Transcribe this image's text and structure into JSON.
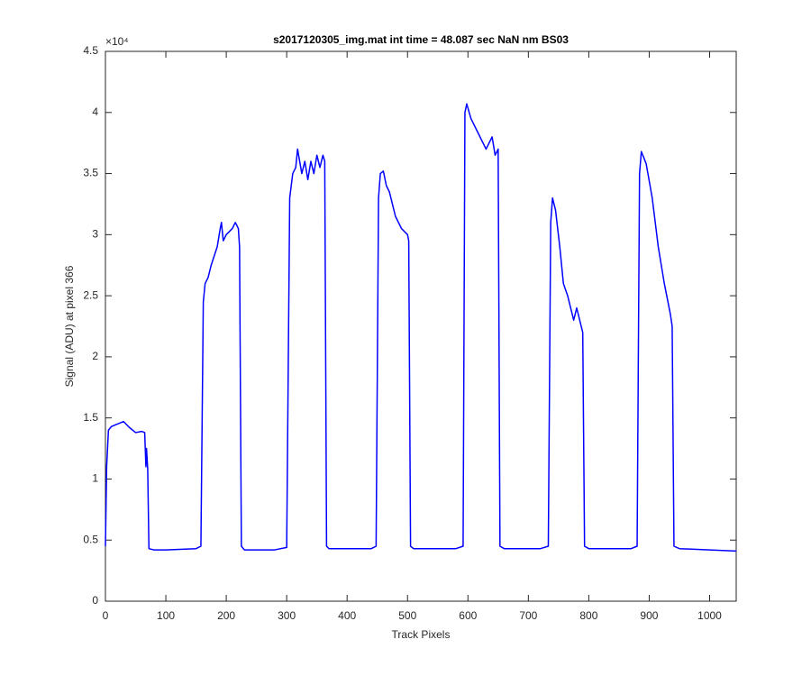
{
  "chart_data": {
    "type": "line",
    "title": "s2017120305_img.mat int time = 48.087 sec  NaN nm BS03",
    "xlabel": "Track Pixels",
    "ylabel": "Signal (ADU) at pixel 366",
    "y_multiplier": "×10⁴",
    "xlim": [
      0,
      1044
    ],
    "ylim": [
      0,
      45000
    ],
    "xticks": [
      0,
      100,
      200,
      300,
      400,
      500,
      600,
      700,
      800,
      900,
      1000
    ],
    "yticks": [
      0,
      {
        "value": 5000,
        "label": "0.5"
      },
      {
        "value": 10000,
        "label": "1"
      },
      {
        "value": 15000,
        "label": "1.5"
      },
      {
        "value": 20000,
        "label": "2"
      },
      {
        "value": 25000,
        "label": "2.5"
      },
      {
        "value": 30000,
        "label": "3"
      },
      {
        "value": 35000,
        "label": "3.5"
      },
      {
        "value": 40000,
        "label": "4"
      },
      {
        "value": 45000,
        "label": "4.5"
      }
    ],
    "x": [
      0,
      2,
      5,
      10,
      20,
      30,
      40,
      50,
      60,
      65,
      67,
      68,
      70,
      72,
      80,
      100,
      150,
      158,
      162,
      165,
      170,
      175,
      185,
      190,
      192,
      195,
      200,
      210,
      215,
      220,
      222,
      225,
      230,
      280,
      300,
      305,
      310,
      315,
      318,
      325,
      330,
      335,
      340,
      345,
      350,
      355,
      360,
      363,
      366,
      370,
      440,
      448,
      452,
      455,
      460,
      465,
      470,
      475,
      480,
      490,
      500,
      502,
      505,
      510,
      580,
      592,
      595,
      598,
      605,
      615,
      625,
      630,
      640,
      645,
      650,
      653,
      660,
      720,
      733,
      737,
      740,
      745,
      752,
      758,
      765,
      775,
      780,
      790,
      793,
      800,
      870,
      880,
      884,
      887,
      895,
      905,
      915,
      925,
      935,
      938,
      941,
      950,
      1000,
      1044
    ],
    "series": [
      {
        "color": "#0000ff",
        "values": [
          4500,
          11000,
          14000,
          14300,
          14500,
          14700,
          14200,
          13800,
          13900,
          13800,
          11000,
          12500,
          10800,
          4300,
          4200,
          4200,
          4300,
          4500,
          24500,
          26000,
          26500,
          27500,
          29000,
          30500,
          31000,
          29500,
          30000,
          30500,
          31000,
          30500,
          29000,
          4500,
          4200,
          4200,
          4400,
          33000,
          35000,
          35500,
          37000,
          35000,
          36000,
          34500,
          36000,
          35000,
          36500,
          35500,
          36500,
          36000,
          4500,
          4300,
          4300,
          4500,
          33000,
          35000,
          35200,
          34000,
          33500,
          32500,
          31500,
          30500,
          30000,
          29500,
          4500,
          4300,
          4300,
          4500,
          40000,
          40700,
          39500,
          38500,
          37500,
          37000,
          38000,
          36500,
          37000,
          4500,
          4300,
          4300,
          4500,
          31000,
          33000,
          32000,
          29000,
          26000,
          25000,
          23000,
          24000,
          22000,
          4500,
          4300,
          4300,
          4500,
          35000,
          36800,
          35800,
          33000,
          29000,
          26000,
          23500,
          22500,
          4500,
          4300,
          4200,
          4100
        ]
      }
    ]
  }
}
